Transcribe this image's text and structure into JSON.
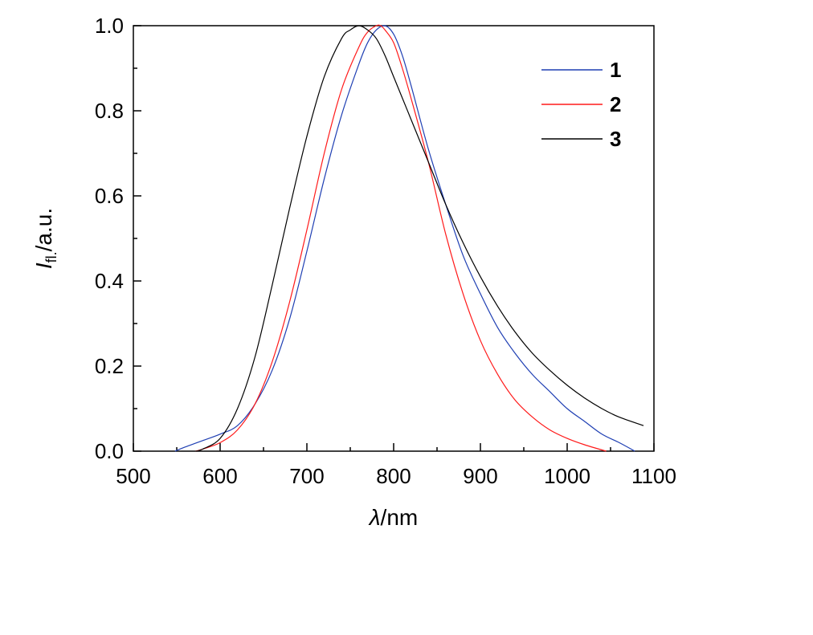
{
  "chart_data": {
    "type": "line",
    "title": "",
    "xlabel": {
      "symbol": "λ",
      "unit": "/nm"
    },
    "ylabel": {
      "symbol": "I",
      "subscript": "fl.",
      "unit": "/a.u."
    },
    "xlim": [
      500,
      1100
    ],
    "ylim": [
      0.0,
      1.0
    ],
    "xticks": [
      "500",
      "600",
      "700",
      "800",
      "900",
      "1000",
      "1100"
    ],
    "yticks": [
      "0.0",
      "0.2",
      "0.4",
      "0.6",
      "0.8",
      "1.0"
    ],
    "grid": false,
    "legend_position": "top-right",
    "series": [
      {
        "name": "1",
        "color": "#1f3fb3",
        "x": [
          548,
          560,
          580,
          600,
          620,
          640,
          660,
          680,
          700,
          720,
          740,
          760,
          770,
          780,
          790,
          800,
          810,
          820,
          840,
          860,
          880,
          900,
          920,
          940,
          960,
          980,
          1000,
          1020,
          1040,
          1060,
          1078
        ],
        "y": [
          0.0,
          0.01,
          0.025,
          0.04,
          0.06,
          0.11,
          0.19,
          0.31,
          0.47,
          0.64,
          0.79,
          0.91,
          0.96,
          0.99,
          1.0,
          0.98,
          0.93,
          0.86,
          0.71,
          0.58,
          0.46,
          0.37,
          0.29,
          0.23,
          0.18,
          0.14,
          0.1,
          0.07,
          0.04,
          0.02,
          0.0
        ]
      },
      {
        "name": "2",
        "color": "#ff1a1a",
        "x": [
          572,
          580,
          600,
          620,
          640,
          660,
          680,
          700,
          720,
          740,
          760,
          770,
          780,
          785,
          790,
          800,
          810,
          820,
          840,
          860,
          880,
          900,
          920,
          940,
          960,
          980,
          1000,
          1020,
          1045
        ],
        "y": [
          0.0,
          0.005,
          0.02,
          0.05,
          0.11,
          0.21,
          0.35,
          0.52,
          0.7,
          0.85,
          0.95,
          0.985,
          1.0,
          1.0,
          0.99,
          0.96,
          0.9,
          0.83,
          0.68,
          0.51,
          0.37,
          0.26,
          0.18,
          0.12,
          0.08,
          0.05,
          0.03,
          0.015,
          0.0
        ]
      },
      {
        "name": "3",
        "color": "#000000",
        "x": [
          572,
          580,
          600,
          620,
          640,
          660,
          680,
          700,
          720,
          740,
          750,
          760,
          770,
          780,
          790,
          800,
          820,
          840,
          860,
          880,
          900,
          920,
          940,
          960,
          980,
          1000,
          1020,
          1040,
          1060,
          1088
        ],
        "y": [
          0.0,
          0.005,
          0.03,
          0.1,
          0.22,
          0.39,
          0.57,
          0.74,
          0.88,
          0.97,
          0.99,
          1.0,
          0.99,
          0.97,
          0.93,
          0.88,
          0.78,
          0.68,
          0.58,
          0.49,
          0.41,
          0.34,
          0.28,
          0.23,
          0.19,
          0.155,
          0.125,
          0.1,
          0.08,
          0.06
        ]
      }
    ]
  }
}
